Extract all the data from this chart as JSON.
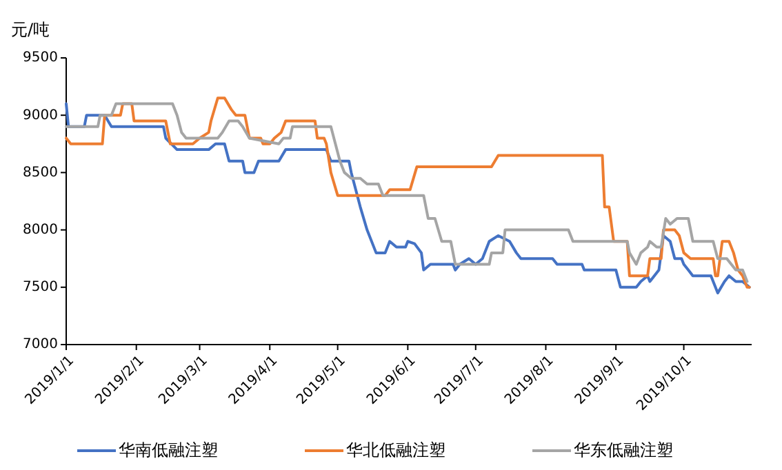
{
  "chart_data": {
    "type": "line",
    "ylabel": "元/吨",
    "xlim": [
      "2019-01-01",
      "2019-10-31"
    ],
    "ylim": [
      7000,
      9500
    ],
    "yticks": [
      7000,
      7500,
      8000,
      8500,
      9000,
      9500
    ],
    "xticks": [
      {
        "value": "2019-01-01",
        "label": "2019/1/1"
      },
      {
        "value": "2019-02-01",
        "label": "2019/2/1"
      },
      {
        "value": "2019-03-01",
        "label": "2019/3/1"
      },
      {
        "value": "2019-04-01",
        "label": "2019/4/1"
      },
      {
        "value": "2019-05-01",
        "label": "2019/5/1"
      },
      {
        "value": "2019-06-01",
        "label": "2019/6/1"
      },
      {
        "value": "2019-07-01",
        "label": "2019/7/1"
      },
      {
        "value": "2019-08-01",
        "label": "2019/8/1"
      },
      {
        "value": "2019-09-01",
        "label": "2019/9/1"
      },
      {
        "value": "2019-10-01",
        "label": "2019/10/1"
      }
    ],
    "grid": false,
    "legend": "bottom",
    "marker": "none",
    "line_style": "solid",
    "series": [
      {
        "name": "华南低融注塑",
        "color": "#4472c4",
        "x": [
          "2019-01-01",
          "2019-01-02",
          "2019-01-09",
          "2019-01-10",
          "2019-01-18",
          "2019-01-21",
          "2019-02-13",
          "2019-02-14",
          "2019-02-19",
          "2019-03-05",
          "2019-03-08",
          "2019-03-12",
          "2019-03-14",
          "2019-03-20",
          "2019-03-21",
          "2019-03-25",
          "2019-03-27",
          "2019-04-05",
          "2019-04-08",
          "2019-04-26",
          "2019-04-28",
          "2019-05-06",
          "2019-05-07",
          "2019-05-11",
          "2019-05-14",
          "2019-05-18",
          "2019-05-22",
          "2019-05-24",
          "2019-05-27",
          "2019-05-31",
          "2019-06-01",
          "2019-06-04",
          "2019-06-07",
          "2019-06-08",
          "2019-06-11",
          "2019-06-21",
          "2019-06-22",
          "2019-06-24",
          "2019-06-28",
          "2019-07-01",
          "2019-07-04",
          "2019-07-07",
          "2019-07-11",
          "2019-07-16",
          "2019-07-19",
          "2019-07-21",
          "2019-08-04",
          "2019-08-06",
          "2019-08-17",
          "2019-08-18",
          "2019-09-01",
          "2019-09-03",
          "2019-09-10",
          "2019-09-12",
          "2019-09-15",
          "2019-09-16",
          "2019-09-20",
          "2019-09-22",
          "2019-09-25",
          "2019-09-27",
          "2019-09-30",
          "2019-10-01",
          "2019-10-03",
          "2019-10-05",
          "2019-10-13",
          "2019-10-15",
          "2019-10-16",
          "2019-10-19",
          "2019-10-21",
          "2019-10-24",
          "2019-10-27",
          "2019-10-30"
        ],
        "values": [
          9100,
          8900,
          8900,
          9000,
          9000,
          8900,
          8900,
          8800,
          8700,
          8700,
          8750,
          8750,
          8600,
          8600,
          8500,
          8500,
          8600,
          8600,
          8700,
          8700,
          8600,
          8600,
          8500,
          8200,
          8000,
          7800,
          7800,
          7900,
          7850,
          7850,
          7900,
          7880,
          7800,
          7650,
          7700,
          7700,
          7650,
          7700,
          7750,
          7700,
          7750,
          7900,
          7950,
          7900,
          7800,
          7750,
          7750,
          7700,
          7700,
          7650,
          7650,
          7500,
          7500,
          7550,
          7600,
          7550,
          7650,
          7950,
          7900,
          7750,
          7750,
          7700,
          7650,
          7600,
          7600,
          7500,
          7450,
          7550,
          7600,
          7550,
          7550,
          7500
        ]
      },
      {
        "name": "华北低融注塑",
        "color": "#ed7d31",
        "x": [
          "2019-01-01",
          "2019-01-03",
          "2019-01-17",
          "2019-01-18",
          "2019-01-25",
          "2019-01-26",
          "2019-01-30",
          "2019-01-31",
          "2019-02-14",
          "2019-02-16",
          "2019-02-26",
          "2019-03-01",
          "2019-03-05",
          "2019-03-06",
          "2019-03-09",
          "2019-03-12",
          "2019-03-15",
          "2019-03-17",
          "2019-03-21",
          "2019-03-23",
          "2019-03-28",
          "2019-03-29",
          "2019-04-01",
          "2019-04-03",
          "2019-04-06",
          "2019-04-08",
          "2019-04-21",
          "2019-04-22",
          "2019-04-25",
          "2019-04-26",
          "2019-04-28",
          "2019-05-01",
          "2019-05-22",
          "2019-05-24",
          "2019-06-02",
          "2019-06-05",
          "2019-07-08",
          "2019-07-11",
          "2019-08-26",
          "2019-08-27",
          "2019-08-29",
          "2019-08-31",
          "2019-09-06",
          "2019-09-07",
          "2019-09-15",
          "2019-09-16",
          "2019-09-21",
          "2019-09-22",
          "2019-09-27",
          "2019-09-29",
          "2019-10-01",
          "2019-10-04",
          "2019-10-14",
          "2019-10-15",
          "2019-10-16",
          "2019-10-18",
          "2019-10-21",
          "2019-10-23",
          "2019-10-25",
          "2019-10-27",
          "2019-10-29",
          "2019-10-30"
        ],
        "values": [
          8800,
          8750,
          8750,
          9000,
          9000,
          9100,
          9100,
          8950,
          8950,
          8750,
          8750,
          8800,
          8850,
          8950,
          9150,
          9150,
          9050,
          9000,
          9000,
          8800,
          8800,
          8750,
          8750,
          8800,
          8850,
          8950,
          8950,
          8800,
          8800,
          8750,
          8500,
          8300,
          8300,
          8350,
          8350,
          8550,
          8550,
          8650,
          8650,
          8200,
          8200,
          7900,
          7900,
          7600,
          7600,
          7750,
          7750,
          8000,
          8000,
          7950,
          7800,
          7750,
          7750,
          7600,
          7600,
          7900,
          7900,
          7800,
          7650,
          7600,
          7500,
          7500
        ]
      },
      {
        "name": "华东低融注塑",
        "color": "#a5a5a5",
        "x": [
          "2019-01-01",
          "2019-01-15",
          "2019-01-16",
          "2019-01-21",
          "2019-01-23",
          "2019-02-17",
          "2019-02-19",
          "2019-02-21",
          "2019-02-23",
          "2019-03-09",
          "2019-03-11",
          "2019-03-14",
          "2019-03-18",
          "2019-03-20",
          "2019-03-23",
          "2019-04-05",
          "2019-04-07",
          "2019-04-10",
          "2019-04-11",
          "2019-04-28",
          "2019-04-30",
          "2019-05-02",
          "2019-05-04",
          "2019-05-07",
          "2019-05-11",
          "2019-05-14",
          "2019-05-19",
          "2019-05-21",
          "2019-06-08",
          "2019-06-10",
          "2019-06-13",
          "2019-06-16",
          "2019-06-20",
          "2019-06-22",
          "2019-07-07",
          "2019-07-08",
          "2019-07-13",
          "2019-07-14",
          "2019-08-11",
          "2019-08-13",
          "2019-09-06",
          "2019-09-07",
          "2019-09-10",
          "2019-09-12",
          "2019-09-15",
          "2019-09-16",
          "2019-09-19",
          "2019-09-21",
          "2019-09-23",
          "2019-09-25",
          "2019-09-28",
          "2019-10-03",
          "2019-10-05",
          "2019-10-14",
          "2019-10-16",
          "2019-10-20",
          "2019-10-24",
          "2019-10-27",
          "2019-10-29"
        ],
        "values": [
          8900,
          8900,
          9000,
          9000,
          9100,
          9100,
          9000,
          8850,
          8800,
          8800,
          8850,
          8950,
          8950,
          8900,
          8800,
          8750,
          8800,
          8800,
          8900,
          8900,
          8750,
          8600,
          8500,
          8450,
          8450,
          8400,
          8400,
          8300,
          8300,
          8100,
          8100,
          7900,
          7900,
          7700,
          7700,
          7800,
          7800,
          8000,
          8000,
          7900,
          7900,
          7800,
          7700,
          7800,
          7850,
          7900,
          7850,
          7850,
          8100,
          8050,
          8100,
          8100,
          7900,
          7900,
          7750,
          7750,
          7650,
          7650,
          7550
        ]
      }
    ]
  }
}
